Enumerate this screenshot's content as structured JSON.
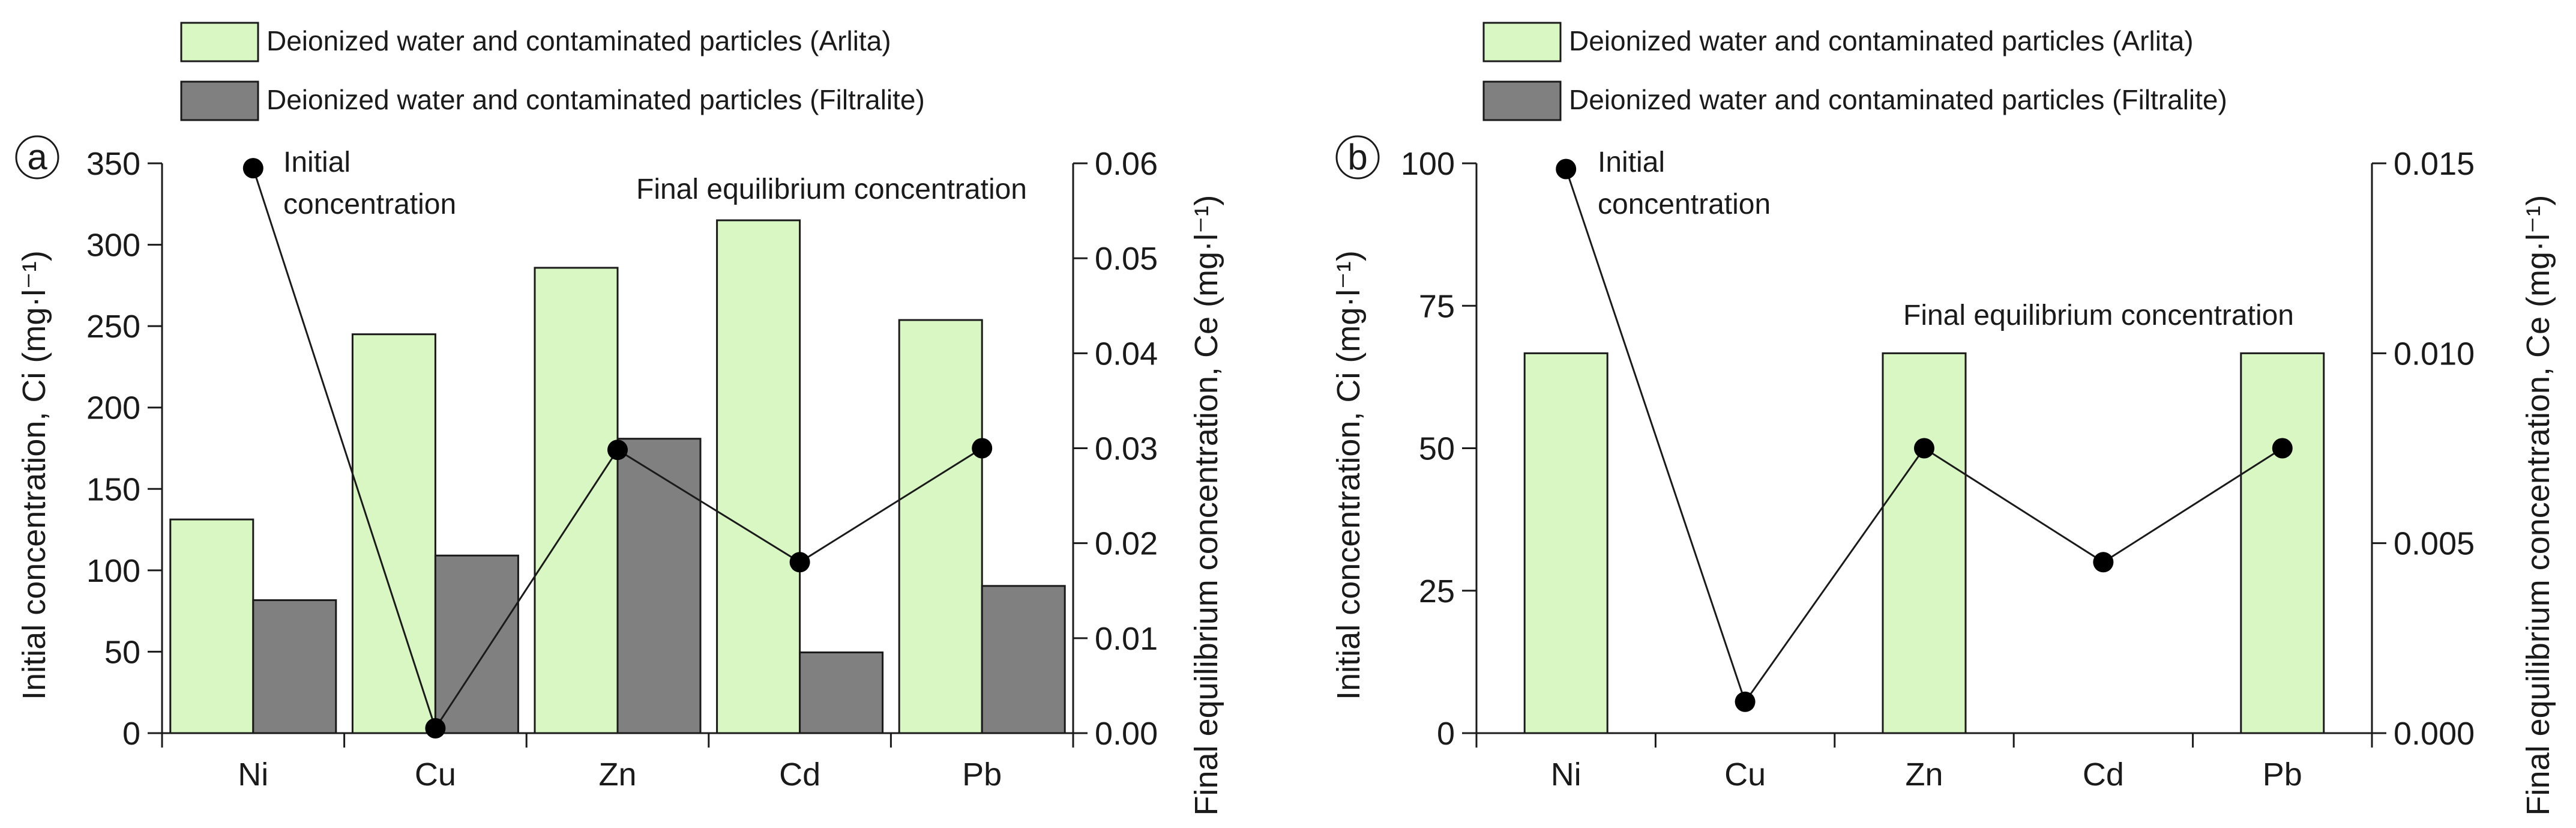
{
  "chart_data": [
    {
      "panel_label": "a",
      "type": "bar",
      "categories": [
        "Ni",
        "Cu",
        "Zn",
        "Cd",
        "Pb"
      ],
      "series": [
        {
          "name": "Deionized water and contaminated particles (Arlita)",
          "values": [
            0.0225,
            0.042,
            0.049,
            0.054,
            0.0435
          ],
          "color": "#d9f7c3",
          "axis": "right"
        },
        {
          "name": "Deionized water and contaminated particles (Filtralite)",
          "values": [
            0.014,
            0.0187,
            0.031,
            0.0085,
            0.0155
          ],
          "color": "#808080",
          "axis": "right"
        }
      ],
      "line": {
        "axis": "left",
        "values": [
          347,
          3,
          174,
          105,
          175
        ]
      },
      "annotations": {
        "initial": [
          "Initial",
          "concentration"
        ],
        "final": "Final equilibrium concentration"
      },
      "ylabel": "Initial concentration, Ci (mg·l⁻¹)",
      "ylabel_right": "Final equilibrium concentration, Ce (mg·l⁻¹)",
      "ylim": [
        0,
        350
      ],
      "ylim_right": [
        0,
        0.06
      ],
      "yticks": [
        "0",
        "50",
        "100",
        "150",
        "200",
        "250",
        "300",
        "350"
      ],
      "yticks_right": [
        "0.00",
        "0.01",
        "0.02",
        "0.03",
        "0.04",
        "0.05",
        "0.06"
      ],
      "legend_position": "top"
    },
    {
      "panel_label": "b",
      "type": "bar",
      "categories": [
        "Ni",
        "Cu",
        "Zn",
        "Cd",
        "Pb"
      ],
      "series": [
        {
          "name": "Deionized water and contaminated particles (Arlita)",
          "values": [
            0.01,
            0,
            0.01,
            0,
            0.01
          ],
          "color": "#d9f7c3",
          "axis": "right"
        },
        {
          "name": "Deionized water and contaminated particles (Filtralite)",
          "values": [
            0,
            0,
            0,
            0,
            0
          ],
          "color": "#808080",
          "axis": "right"
        }
      ],
      "line": {
        "axis": "left",
        "values": [
          99,
          5.5,
          50,
          30,
          50
        ]
      },
      "annotations": {
        "initial": [
          "Initial",
          "concentration"
        ],
        "final": "Final equilibrium concentration"
      },
      "ylabel": "Initial concentration, Ci (mg·l⁻¹)",
      "ylabel_right": "Final equilibrium concentration, Ce (mg·l⁻¹)",
      "ylim": [
        0,
        100
      ],
      "ylim_right": [
        0,
        0.015
      ],
      "yticks": [
        "0",
        "25",
        "50",
        "75",
        "100"
      ],
      "yticks_right": [
        "0.000",
        "0.005",
        "0.010",
        "0.015"
      ],
      "legend_position": "top"
    }
  ]
}
